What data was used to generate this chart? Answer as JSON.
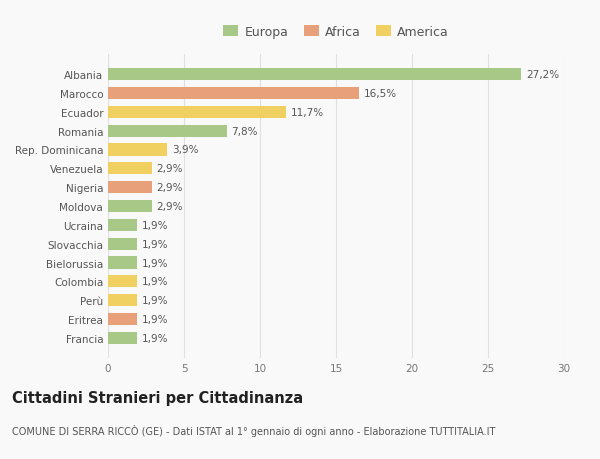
{
  "categories": [
    "Francia",
    "Eritrea",
    "Perù",
    "Colombia",
    "Bielorussia",
    "Slovacchia",
    "Ucraina",
    "Moldova",
    "Nigeria",
    "Venezuela",
    "Rep. Dominicana",
    "Romania",
    "Ecuador",
    "Marocco",
    "Albania"
  ],
  "values": [
    1.9,
    1.9,
    1.9,
    1.9,
    1.9,
    1.9,
    1.9,
    2.9,
    2.9,
    2.9,
    3.9,
    7.8,
    11.7,
    16.5,
    27.2
  ],
  "labels": [
    "1,9%",
    "1,9%",
    "1,9%",
    "1,9%",
    "1,9%",
    "1,9%",
    "1,9%",
    "2,9%",
    "2,9%",
    "2,9%",
    "3,9%",
    "7,8%",
    "11,7%",
    "16,5%",
    "27,2%"
  ],
  "continents": [
    "Europa",
    "Africa",
    "America",
    "America",
    "Europa",
    "Europa",
    "Europa",
    "Europa",
    "Africa",
    "America",
    "America",
    "Europa",
    "America",
    "Africa",
    "Europa"
  ],
  "colors": {
    "Europa": "#a8c888",
    "Africa": "#e8a07a",
    "America": "#f0d060"
  },
  "xlim": [
    0,
    30
  ],
  "xticks": [
    0,
    5,
    10,
    15,
    20,
    25,
    30
  ],
  "title": "Cittadini Stranieri per Cittadinanza",
  "subtitle": "COMUNE DI SERRA RICCÒ (GE) - Dati ISTAT al 1° gennaio di ogni anno - Elaborazione TUTTITALIA.IT",
  "bg_color": "#f9f9f9",
  "grid_color": "#e0e0e0",
  "bar_height": 0.65,
  "label_fontsize": 7.5,
  "tick_fontsize": 7.5,
  "title_fontsize": 10.5,
  "subtitle_fontsize": 7.0,
  "legend_fontsize": 9.0
}
